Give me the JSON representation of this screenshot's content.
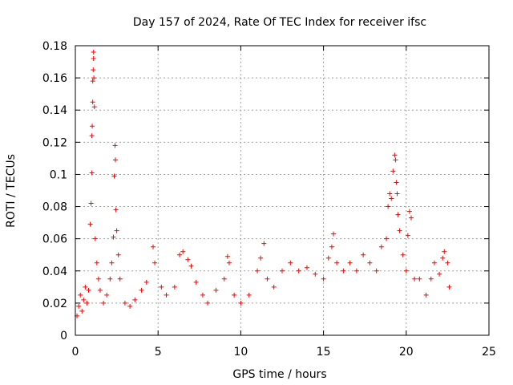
{
  "chart_data": {
    "type": "scatter",
    "title": "Day 157 of 2024, Rate Of TEC Index for receiver ifsc",
    "xlabel": "GPS time / hours",
    "ylabel": "ROTI / TECUs",
    "xlim": [
      0,
      25
    ],
    "ylim": [
      0,
      0.18
    ],
    "xticks": [
      0,
      5,
      10,
      15,
      20,
      25
    ],
    "yticks": [
      0,
      0.02,
      0.04,
      0.06,
      0.08,
      0.1,
      0.12,
      0.14,
      0.16,
      0.18
    ],
    "xtick_labels": [
      "0",
      "5",
      "10",
      "15",
      "20",
      "25"
    ],
    "ytick_labels": [
      "0",
      "0.02",
      "0.04",
      "0.06",
      "0.08",
      "0.1",
      "0.12",
      "0.14",
      "0.16",
      "0.18"
    ],
    "grid": true,
    "legend": "none",
    "marker": "plus",
    "marker_color": "#ff0000",
    "series": [
      {
        "points": [
          [
            0.1,
            0.012
          ],
          [
            0.2,
            0.018
          ],
          [
            0.3,
            0.025
          ],
          [
            0.4,
            0.015
          ],
          [
            0.5,
            0.022
          ],
          [
            0.6,
            0.03
          ],
          [
            0.7,
            0.02
          ],
          [
            0.8,
            0.028
          ],
          [
            0.9,
            0.069
          ],
          [
            0.95,
            0.082
          ],
          [
            1.0,
            0.101
          ],
          [
            1.0,
            0.124
          ],
          [
            1.02,
            0.13
          ],
          [
            1.05,
            0.145
          ],
          [
            1.05,
            0.158
          ],
          [
            1.08,
            0.165
          ],
          [
            1.1,
            0.176
          ],
          [
            1.1,
            0.172
          ],
          [
            1.12,
            0.16
          ],
          [
            1.15,
            0.142
          ],
          [
            1.2,
            0.06
          ],
          [
            1.3,
            0.045
          ],
          [
            1.4,
            0.035
          ],
          [
            1.5,
            0.028
          ],
          [
            1.7,
            0.02
          ],
          [
            1.9,
            0.025
          ],
          [
            2.1,
            0.035
          ],
          [
            2.2,
            0.045
          ],
          [
            2.3,
            0.061
          ],
          [
            2.35,
            0.099
          ],
          [
            2.4,
            0.118
          ],
          [
            2.42,
            0.109
          ],
          [
            2.45,
            0.078
          ],
          [
            2.5,
            0.065
          ],
          [
            2.6,
            0.05
          ],
          [
            2.7,
            0.035
          ],
          [
            3.0,
            0.02
          ],
          [
            3.3,
            0.018
          ],
          [
            3.6,
            0.022
          ],
          [
            4.0,
            0.028
          ],
          [
            4.3,
            0.033
          ],
          [
            4.7,
            0.055
          ],
          [
            4.8,
            0.045
          ],
          [
            5.2,
            0.03
          ],
          [
            5.5,
            0.025
          ],
          [
            6.0,
            0.03
          ],
          [
            6.3,
            0.05
          ],
          [
            6.5,
            0.052
          ],
          [
            6.8,
            0.047
          ],
          [
            7.0,
            0.043
          ],
          [
            7.3,
            0.033
          ],
          [
            7.7,
            0.025
          ],
          [
            8.0,
            0.02
          ],
          [
            8.5,
            0.028
          ],
          [
            9.0,
            0.035
          ],
          [
            9.2,
            0.049
          ],
          [
            9.3,
            0.045
          ],
          [
            9.6,
            0.025
          ],
          [
            10.0,
            0.02
          ],
          [
            10.5,
            0.025
          ],
          [
            11.0,
            0.04
          ],
          [
            11.2,
            0.048
          ],
          [
            11.4,
            0.057
          ],
          [
            11.6,
            0.035
          ],
          [
            12.0,
            0.03
          ],
          [
            12.5,
            0.04
          ],
          [
            13.0,
            0.045
          ],
          [
            13.5,
            0.04
          ],
          [
            14.0,
            0.042
          ],
          [
            14.5,
            0.038
          ],
          [
            15.0,
            0.035
          ],
          [
            15.3,
            0.048
          ],
          [
            15.5,
            0.055
          ],
          [
            15.6,
            0.063
          ],
          [
            15.8,
            0.045
          ],
          [
            16.2,
            0.04
          ],
          [
            16.6,
            0.045
          ],
          [
            17.0,
            0.04
          ],
          [
            17.4,
            0.05
          ],
          [
            17.8,
            0.045
          ],
          [
            18.2,
            0.04
          ],
          [
            18.5,
            0.055
          ],
          [
            18.8,
            0.06
          ],
          [
            18.9,
            0.08
          ],
          [
            19.0,
            0.088
          ],
          [
            19.1,
            0.085
          ],
          [
            19.2,
            0.102
          ],
          [
            19.3,
            0.112
          ],
          [
            19.35,
            0.109
          ],
          [
            19.4,
            0.095
          ],
          [
            19.45,
            0.088
          ],
          [
            19.5,
            0.075
          ],
          [
            19.6,
            0.065
          ],
          [
            19.8,
            0.05
          ],
          [
            20.0,
            0.04
          ],
          [
            20.1,
            0.062
          ],
          [
            20.2,
            0.077
          ],
          [
            20.3,
            0.073
          ],
          [
            20.5,
            0.035
          ],
          [
            20.8,
            0.035
          ],
          [
            21.2,
            0.025
          ],
          [
            21.5,
            0.035
          ],
          [
            21.7,
            0.045
          ],
          [
            22.0,
            0.038
          ],
          [
            22.2,
            0.048
          ],
          [
            22.3,
            0.052
          ],
          [
            22.5,
            0.045
          ],
          [
            22.6,
            0.03
          ]
        ]
      }
    ]
  }
}
